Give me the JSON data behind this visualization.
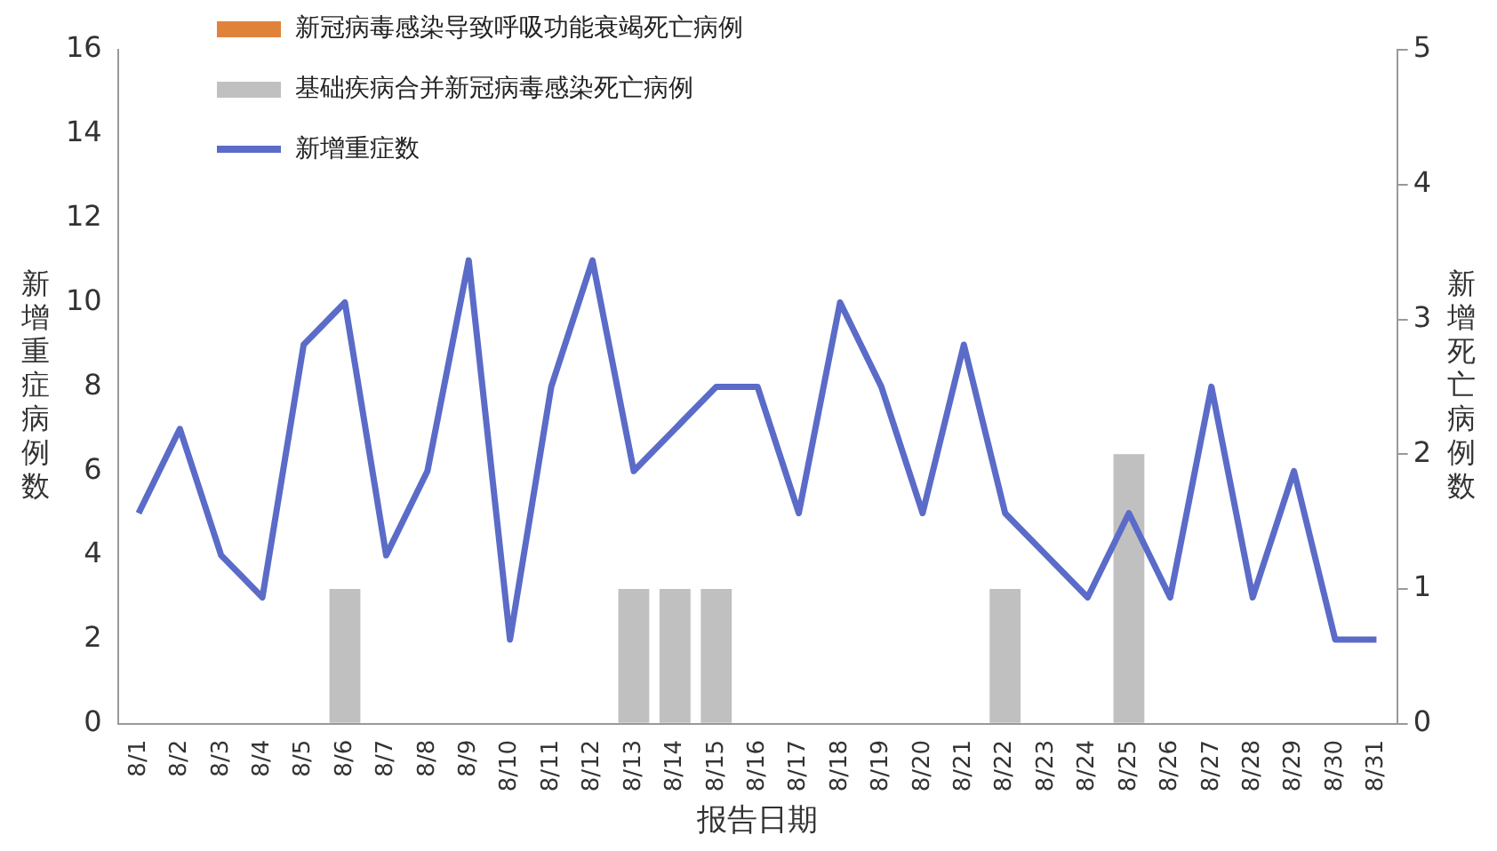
{
  "chart_data": {
    "type": "line",
    "xlabel": "报告日期",
    "ylabel": "新增重症病例数",
    "y2label": "新增死亡病例数",
    "categories": [
      "8/1",
      "8/2",
      "8/3",
      "8/4",
      "8/5",
      "8/6",
      "8/7",
      "8/8",
      "8/9",
      "8/10",
      "8/11",
      "8/12",
      "8/13",
      "8/14",
      "8/15",
      "8/16",
      "8/17",
      "8/18",
      "8/19",
      "8/20",
      "8/21",
      "8/22",
      "8/23",
      "8/24",
      "8/25",
      "8/26",
      "8/27",
      "8/28",
      "8/29",
      "8/30",
      "8/31"
    ],
    "series": [
      {
        "name": "新冠病毒感染导致呼吸功能衰竭死亡病例",
        "type": "bar",
        "axis": "y2",
        "color": "#e0823a",
        "values": [
          0,
          0,
          0,
          0,
          0,
          0,
          0,
          0,
          0,
          0,
          0,
          0,
          0,
          0,
          0,
          0,
          0,
          0,
          0,
          0,
          0,
          0,
          0,
          0,
          0,
          0,
          0,
          0,
          0,
          0,
          0
        ]
      },
      {
        "name": "基础疾病合并新冠病毒感染死亡病例",
        "type": "bar",
        "axis": "y2",
        "color": "#c0c0c0",
        "values": [
          0,
          0,
          0,
          0,
          0,
          1,
          0,
          0,
          0,
          0,
          0,
          0,
          1,
          1,
          1,
          0,
          0,
          0,
          0,
          0,
          0,
          1,
          0,
          0,
          2,
          0,
          0,
          0,
          0,
          0,
          0
        ]
      },
      {
        "name": "新增重症数",
        "axis": "y",
        "color": "#5b6bc8",
        "values": [
          5,
          7,
          4,
          3,
          9,
          10,
          4,
          6,
          11,
          2,
          8,
          11,
          6,
          7,
          8,
          8,
          5,
          10,
          8,
          5,
          9,
          5,
          4,
          3,
          5,
          3,
          8,
          3,
          6,
          2,
          2
        ]
      }
    ],
    "stacked": true,
    "ylim": [
      0,
      16
    ],
    "yticks": [
      0,
      2,
      4,
      6,
      8,
      10,
      12,
      14,
      16
    ],
    "y2lim": [
      0,
      5
    ],
    "y2ticks": [
      0,
      1,
      2,
      3,
      4,
      5
    ],
    "grid": false,
    "legend": "top left",
    "marker": "none",
    "line_style": "solid"
  }
}
